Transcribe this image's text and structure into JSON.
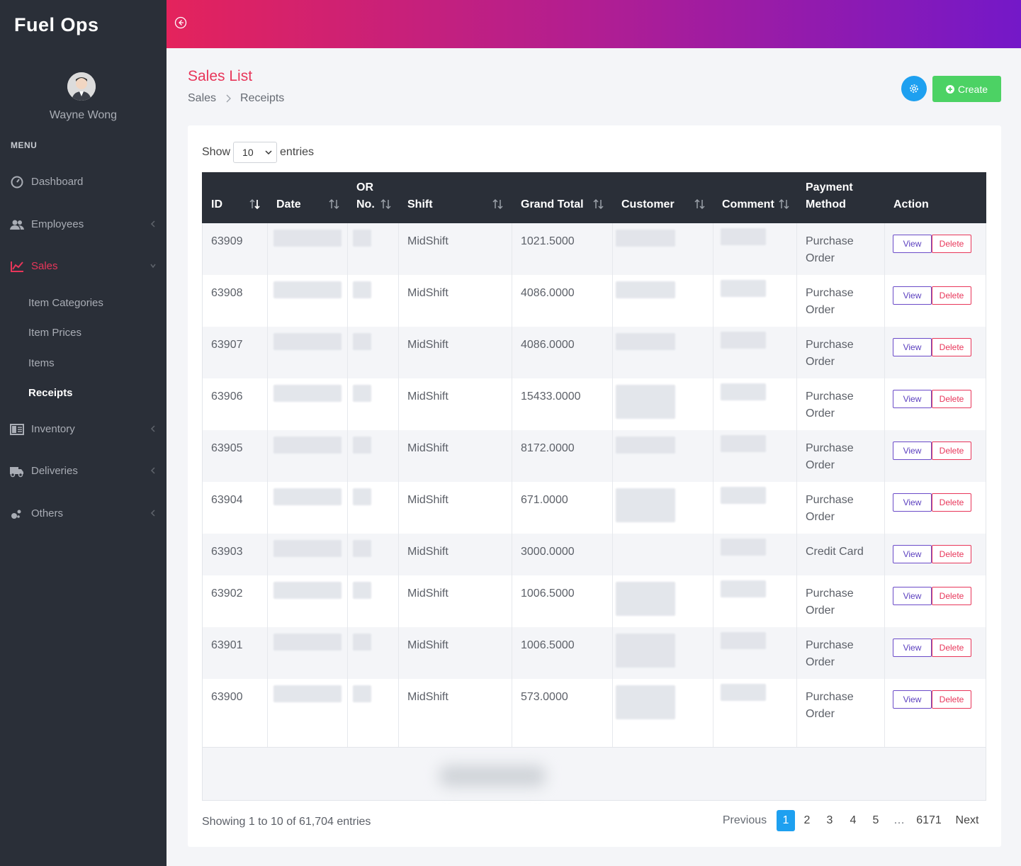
{
  "app": {
    "brand": "Fuel Ops"
  },
  "user": {
    "name": "Wayne Wong"
  },
  "sidebar": {
    "menu_label": "MENU",
    "items": [
      {
        "label": "Dashboard",
        "icon": "dashboard-icon"
      },
      {
        "label": "Employees",
        "icon": "users-icon"
      },
      {
        "label": "Sales",
        "icon": "chart-line-icon"
      },
      {
        "label": "Inventory",
        "icon": "inventory-icon"
      },
      {
        "label": "Deliveries",
        "icon": "truck-icon"
      },
      {
        "label": "Others",
        "icon": "others-icon"
      }
    ],
    "sales_sub": [
      "Item Categories",
      "Item Prices",
      "Items",
      "Receipts"
    ]
  },
  "page": {
    "title": "Sales List",
    "breadcrumb": [
      "Sales",
      "Receipts"
    ],
    "create_label": "Create"
  },
  "entries": {
    "show_label": "Show",
    "value": "10",
    "suffix": "entries"
  },
  "table": {
    "headers": {
      "id": "ID",
      "date": "Date",
      "or_no_1": "OR",
      "or_no_2": "No.",
      "shift": "Shift",
      "grand_total": "Grand Total",
      "customer": "Customer",
      "comment": "Comment",
      "payment_1": "Payment",
      "payment_2": "Method",
      "action": "Action"
    },
    "view_label": "View",
    "delete_label": "Delete",
    "rows": [
      {
        "id": "63909",
        "shift": "MidShift",
        "total": "1021.5000",
        "pay1": "Purchase",
        "pay2": "Order"
      },
      {
        "id": "63908",
        "shift": "MidShift",
        "total": "4086.0000",
        "pay1": "Purchase",
        "pay2": "Order"
      },
      {
        "id": "63907",
        "shift": "MidShift",
        "total": "4086.0000",
        "pay1": "Purchase",
        "pay2": "Order"
      },
      {
        "id": "63906",
        "shift": "MidShift",
        "total": "15433.0000",
        "pay1": "Purchase",
        "pay2": "Order"
      },
      {
        "id": "63905",
        "shift": "MidShift",
        "total": "8172.0000",
        "pay1": "Purchase",
        "pay2": "Order"
      },
      {
        "id": "63904",
        "shift": "MidShift",
        "total": "671.0000",
        "pay1": "Purchase",
        "pay2": "Order"
      },
      {
        "id": "63903",
        "shift": "MidShift",
        "total": "3000.0000",
        "pay1": "Credit Card",
        "pay2": ""
      },
      {
        "id": "63902",
        "shift": "MidShift",
        "total": "1006.5000",
        "pay1": "Purchase",
        "pay2": "Order"
      },
      {
        "id": "63901",
        "shift": "MidShift",
        "total": "1006.5000",
        "pay1": "Purchase",
        "pay2": "Order"
      },
      {
        "id": "63900",
        "shift": "MidShift",
        "total": "573.0000",
        "pay1": "Purchase",
        "pay2": "Order"
      }
    ]
  },
  "footer": {
    "info": "Showing 1 to 10 of 61,704 entries",
    "previous": "Previous",
    "pages": [
      "1",
      "2",
      "3",
      "4",
      "5",
      "…",
      "6171"
    ],
    "next": "Next",
    "current_page": "1"
  },
  "colors": {
    "accent": "#e8365a",
    "primary": "#1ea0f0",
    "success": "#4cd264",
    "sidebar": "#2a2f38"
  }
}
